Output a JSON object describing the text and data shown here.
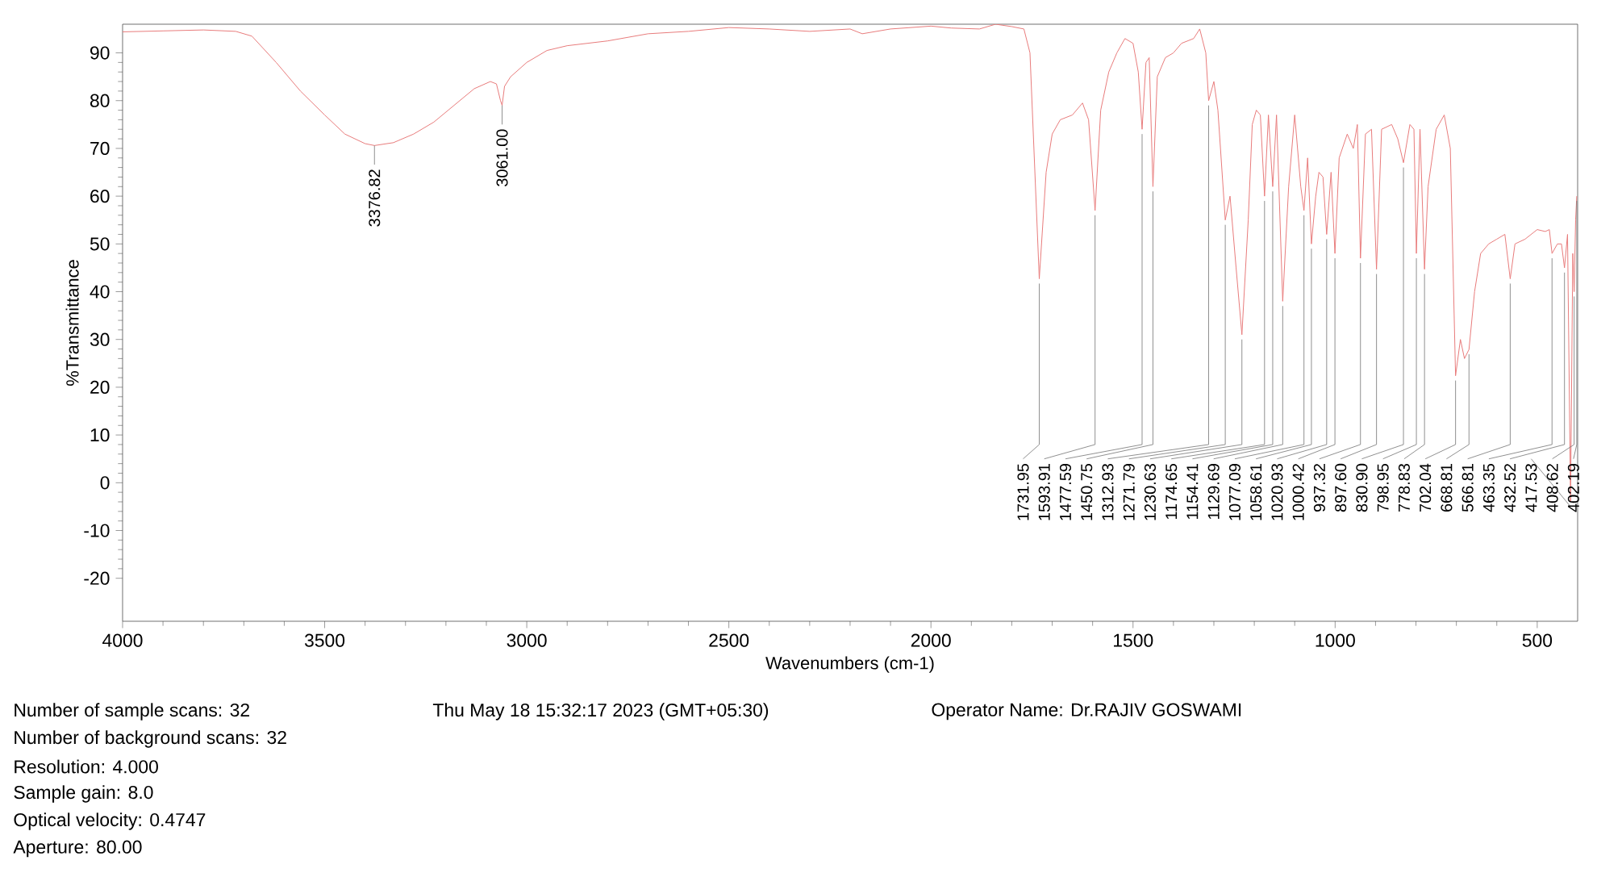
{
  "chart_data": {
    "type": "line",
    "xlabel": "Wavenumbers (cm-1)",
    "ylabel": "%Transmittance",
    "xlim": [
      4000,
      400
    ],
    "ylim": [
      -29,
      96
    ],
    "xticks": [
      4000,
      3500,
      3000,
      2500,
      2000,
      1500,
      1000,
      500
    ],
    "yticks": [
      -20,
      -10,
      0,
      10,
      20,
      30,
      40,
      50,
      60,
      70,
      80,
      90
    ],
    "grid": false,
    "marker": "none",
    "line_style": "solid",
    "series": [
      {
        "color": "#e87b7b",
        "x": [
          4000,
          3900,
          3800,
          3720,
          3680,
          3620,
          3560,
          3500,
          3450,
          3400,
          3376.82,
          3330,
          3280,
          3230,
          3180,
          3130,
          3090,
          3075,
          3065,
          3061,
          3055,
          3040,
          3000,
          2950,
          2900,
          2800,
          2700,
          2600,
          2500,
          2400,
          2300,
          2200,
          2170,
          2100,
          2000,
          1950,
          1880,
          1840,
          1800,
          1770,
          1755,
          1731.95,
          1715,
          1700,
          1680,
          1650,
          1625,
          1610,
          1593.91,
          1580,
          1560,
          1540,
          1520,
          1500,
          1487,
          1477.59,
          1468,
          1460,
          1450.75,
          1440,
          1420,
          1400,
          1380,
          1350,
          1335,
          1320,
          1312.93,
          1300,
          1290,
          1271.79,
          1260,
          1245,
          1230.63,
          1215,
          1205,
          1195,
          1185,
          1174.65,
          1165,
          1154.41,
          1145,
          1129.69,
          1115,
          1100,
          1085,
          1077.09,
          1068,
          1058.61,
          1048,
          1040,
          1030,
          1020.93,
          1010,
          1000.42,
          990,
          970,
          955,
          945,
          937.32,
          925,
          910,
          897.6,
          885,
          860,
          845,
          830.9,
          815,
          805,
          798.95,
          790,
          778.83,
          770,
          750,
          730,
          715,
          702.04,
          690,
          680,
          668.81,
          655,
          640,
          620,
          600,
          580,
          566.81,
          555,
          530,
          500,
          480,
          470,
          463.35,
          450,
          440,
          432.52,
          425,
          417.53,
          412,
          408.62,
          405,
          402.19
        ],
        "values": [
          94.4,
          94.6,
          94.8,
          94.5,
          93.5,
          88,
          82,
          77,
          73,
          71,
          70.6,
          71.2,
          73,
          75.5,
          79,
          82.5,
          84,
          83.5,
          80,
          79,
          83,
          85,
          88,
          90.5,
          91.5,
          92.5,
          94,
          94.5,
          95.3,
          95,
          94.5,
          95,
          94,
          95,
          95.6,
          95.2,
          95,
          96,
          95.5,
          95,
          90,
          42.7,
          65,
          73,
          76,
          77,
          79.5,
          76,
          57,
          78,
          86,
          90,
          93,
          92,
          86,
          74,
          88,
          89,
          62,
          85,
          89,
          90,
          92,
          93,
          95,
          90,
          80,
          84,
          78,
          55,
          60,
          45,
          31,
          55,
          75,
          78,
          77,
          60,
          77,
          62,
          77,
          38,
          62,
          77,
          62,
          57,
          68,
          50,
          60,
          65,
          64,
          52,
          65,
          48,
          68,
          73,
          70,
          75,
          47,
          73,
          74,
          44.7,
          74,
          75,
          72,
          67,
          75,
          74,
          48,
          74,
          44.7,
          62,
          74,
          77,
          70,
          22.4,
          30,
          26,
          27.9,
          40,
          48,
          50,
          51,
          52,
          42.7,
          50,
          51,
          53,
          52.6,
          53,
          48,
          50,
          50,
          45,
          52,
          -4,
          48,
          40,
          55,
          60
        ]
      }
    ],
    "annotations": [
      {
        "text": "3376.82",
        "x": 3376.82,
        "y": 70.6
      },
      {
        "text": "3061.00",
        "x": 3061,
        "y": 79
      },
      {
        "text": "1731.95",
        "x": 1731.95,
        "y": 42.7
      },
      {
        "text": "1593.91",
        "x": 1593.91,
        "y": 57
      },
      {
        "text": "1477.59",
        "x": 1477.59,
        "y": 74
      },
      {
        "text": "1450.75",
        "x": 1450.75,
        "y": 62
      },
      {
        "text": "1312.93",
        "x": 1312.93,
        "y": 80
      },
      {
        "text": "1271.79",
        "x": 1271.79,
        "y": 55
      },
      {
        "text": "1230.63",
        "x": 1230.63,
        "y": 31
      },
      {
        "text": "1174.65",
        "x": 1174.65,
        "y": 60
      },
      {
        "text": "1154.41",
        "x": 1154.41,
        "y": 62
      },
      {
        "text": "1129.69",
        "x": 1129.69,
        "y": 38
      },
      {
        "text": "1077.09",
        "x": 1077.09,
        "y": 57
      },
      {
        "text": "1058.61",
        "x": 1058.61,
        "y": 50
      },
      {
        "text": "1020.93",
        "x": 1020.93,
        "y": 52
      },
      {
        "text": "1000.42",
        "x": 1000.42,
        "y": 48
      },
      {
        "text": "937.32",
        "x": 937.32,
        "y": 47
      },
      {
        "text": "897.60",
        "x": 897.6,
        "y": 44.7
      },
      {
        "text": "830.90",
        "x": 830.9,
        "y": 67
      },
      {
        "text": "798.95",
        "x": 798.95,
        "y": 48
      },
      {
        "text": "778.83",
        "x": 778.83,
        "y": 44.7
      },
      {
        "text": "702.04",
        "x": 702.04,
        "y": 22.4
      },
      {
        "text": "668.81",
        "x": 668.81,
        "y": 27.9
      },
      {
        "text": "566.81",
        "x": 566.81,
        "y": 42.7
      },
      {
        "text": "463.35",
        "x": 463.35,
        "y": 48
      },
      {
        "text": "432.52",
        "x": 432.52,
        "y": 45
      },
      {
        "text": "417.53",
        "x": 417.53,
        "y": -4
      },
      {
        "text": "408.62",
        "x": 408.62,
        "y": 40
      },
      {
        "text": "402.19",
        "x": 402.19,
        "y": 60
      },
      "Number of sample scans:  32",
      "Thu May 18 15:32:17 2023 (GMT+05:30)",
      "Operator Name: Dr.RAJIV GOSWAMI",
      "Number of background scans:  32",
      "Resolution:  4.000",
      "Sample gain:  8.0",
      "Optical velocity:  0.4747",
      "Aperture:  80.00"
    ]
  }
}
